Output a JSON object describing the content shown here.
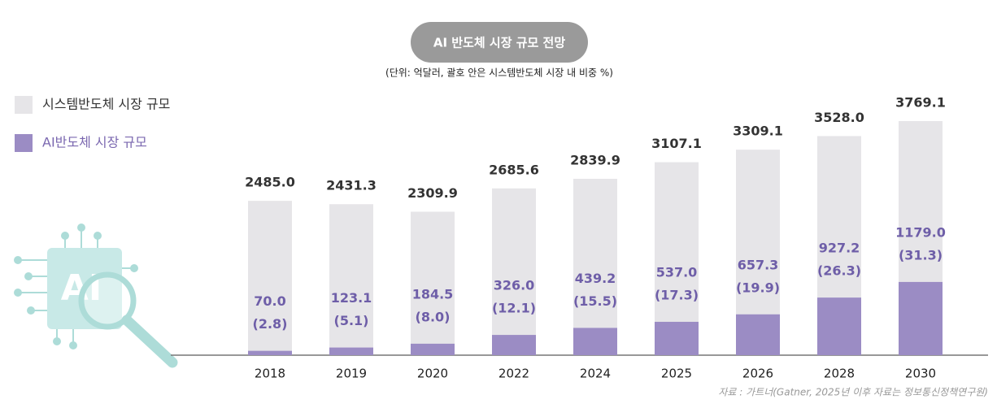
{
  "chart_data": {
    "type": "bar",
    "title": "AI 반도체 시장 규모 전망",
    "subtitle": "(단위: 억달러, 괄호 안은 시스템반도체 시장 내 비중 %)",
    "source": "자료 : 가트너(Gatner, 2025년 이후 자료는 정보통신정책연구원)",
    "categories": [
      "2018",
      "2019",
      "2020",
      "2022",
      "2024",
      "2025",
      "2026",
      "2028",
      "2030"
    ],
    "series": [
      {
        "name": "시스템반도체 시장 규모",
        "color": "#e6e5e8",
        "values": [
          2485.0,
          2431.3,
          2309.9,
          2685.6,
          2839.9,
          3107.1,
          3309.1,
          3528.0,
          3769.1
        ],
        "value_labels": [
          "2485.0",
          "2431.3",
          "2309.9",
          "2685.6",
          "2839.9",
          "3107.1",
          "3309.1",
          "3528.0",
          "3769.1"
        ]
      },
      {
        "name": "AI반도체 시장 규모",
        "color": "#9b8cc4",
        "values": [
          70.0,
          123.1,
          184.5,
          326.0,
          439.2,
          537.0,
          657.3,
          927.2,
          1179.0
        ],
        "value_labels": [
          "70.0",
          "123.1",
          "184.5",
          "326.0",
          "439.2",
          "537.0",
          "657.3",
          "927.2",
          "1179.0"
        ],
        "share_labels": [
          "(2.8)",
          "(5.1)",
          "(8.0)",
          "(12.1)",
          "(15.5)",
          "(17.3)",
          "(19.9)",
          "(26.3)",
          "(31.3)"
        ]
      }
    ],
    "legend": "top-left"
  }
}
